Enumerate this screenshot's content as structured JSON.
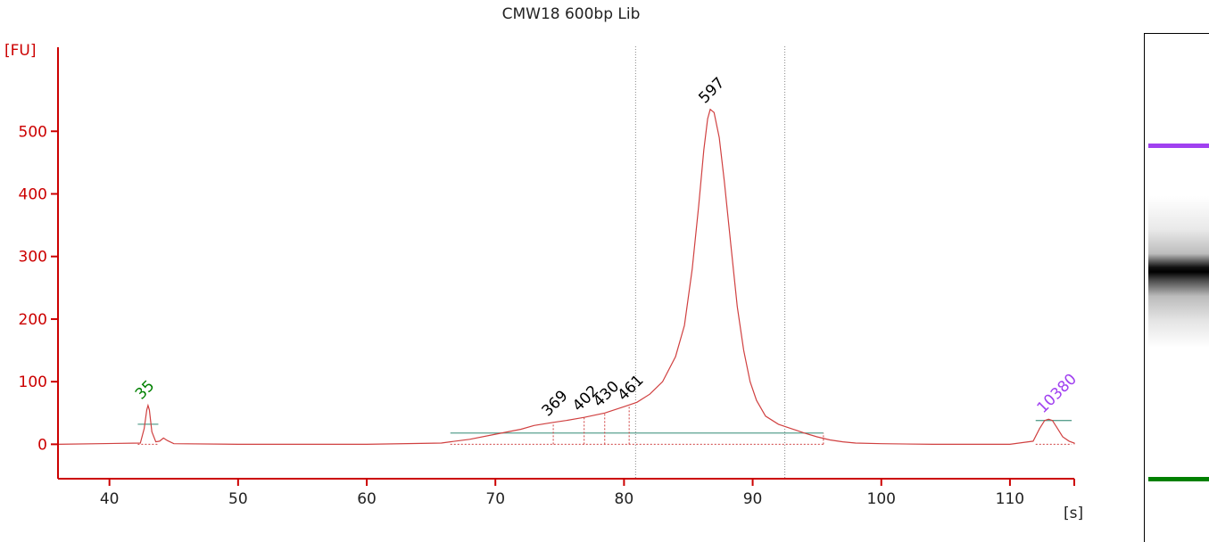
{
  "chart_data": {
    "type": "line",
    "title": "CMW18 600bp Lib",
    "xlabel": "[s]",
    "ylabel": "[FU]",
    "xlim": [
      36,
      115
    ],
    "ylim": [
      -55,
      620
    ],
    "x_ticks": [
      40,
      50,
      60,
      70,
      80,
      90,
      100,
      110
    ],
    "y_ticks": [
      0,
      100,
      200,
      300,
      400,
      500
    ],
    "series": [
      {
        "color": "#d04040",
        "x": [
          36,
          42.4,
          42.7,
          42.9,
          43.0,
          43.1,
          43.3,
          43.6,
          43.9,
          44.2,
          44.5,
          45.0,
          50,
          60,
          65.8,
          66.5,
          68,
          70,
          72,
          73,
          74.5,
          75.5,
          76.9,
          78.5,
          80,
          81,
          82,
          83,
          84,
          84.7,
          85.3,
          85.8,
          86.2,
          86.5,
          86.7,
          87.0,
          87.4,
          87.8,
          88.3,
          88.8,
          89.3,
          89.8,
          90.3,
          91,
          92,
          93,
          94,
          95,
          96,
          97,
          98,
          100,
          104,
          110,
          111.8,
          112.3,
          112.7,
          113.0,
          113.3,
          113.7,
          114.1,
          114.6,
          115.3,
          116,
          117,
          120
        ],
        "y": [
          0,
          2,
          25,
          55,
          62,
          55,
          20,
          4,
          5,
          10,
          6,
          1,
          0,
          0,
          2,
          4,
          8,
          16,
          24,
          30,
          35,
          38,
          43,
          50,
          60,
          67,
          80,
          100,
          140,
          190,
          280,
          380,
          470,
          520,
          535,
          530,
          490,
          420,
          320,
          220,
          150,
          100,
          70,
          45,
          32,
          25,
          18,
          12,
          7,
          4,
          2,
          1,
          0,
          0,
          5,
          25,
          38,
          40,
          38,
          25,
          12,
          5,
          2,
          1,
          0,
          0
        ]
      }
    ],
    "peaks": [
      {
        "x": 42.9,
        "y": 62,
        "label": "35",
        "color": "#008000"
      },
      {
        "x": 74.5,
        "y": 35,
        "label": "369",
        "color": "#000000"
      },
      {
        "x": 76.9,
        "y": 43,
        "label": "402",
        "color": "#000000"
      },
      {
        "x": 78.5,
        "y": 50,
        "label": "430",
        "color": "#000000"
      },
      {
        "x": 80.4,
        "y": 60,
        "label": "461",
        "color": "#000000"
      },
      {
        "x": 86.7,
        "y": 535,
        "label": "597",
        "color": "#000000"
      },
      {
        "x": 113.0,
        "y": 40,
        "label": "10380",
        "color": "#a040f0"
      }
    ],
    "region_markers": [
      80.9,
      92.5
    ],
    "baseline_segments": [
      {
        "x1": 42.2,
        "x2": 43.8,
        "y": 32
      },
      {
        "x1": 66.5,
        "x2": 95.5,
        "y": 18
      },
      {
        "x1": 112.0,
        "x2": 114.8,
        "y": 38
      }
    ],
    "gel": {
      "top_marker_color": "#a040f0",
      "bottom_marker_color": "#008000"
    }
  }
}
